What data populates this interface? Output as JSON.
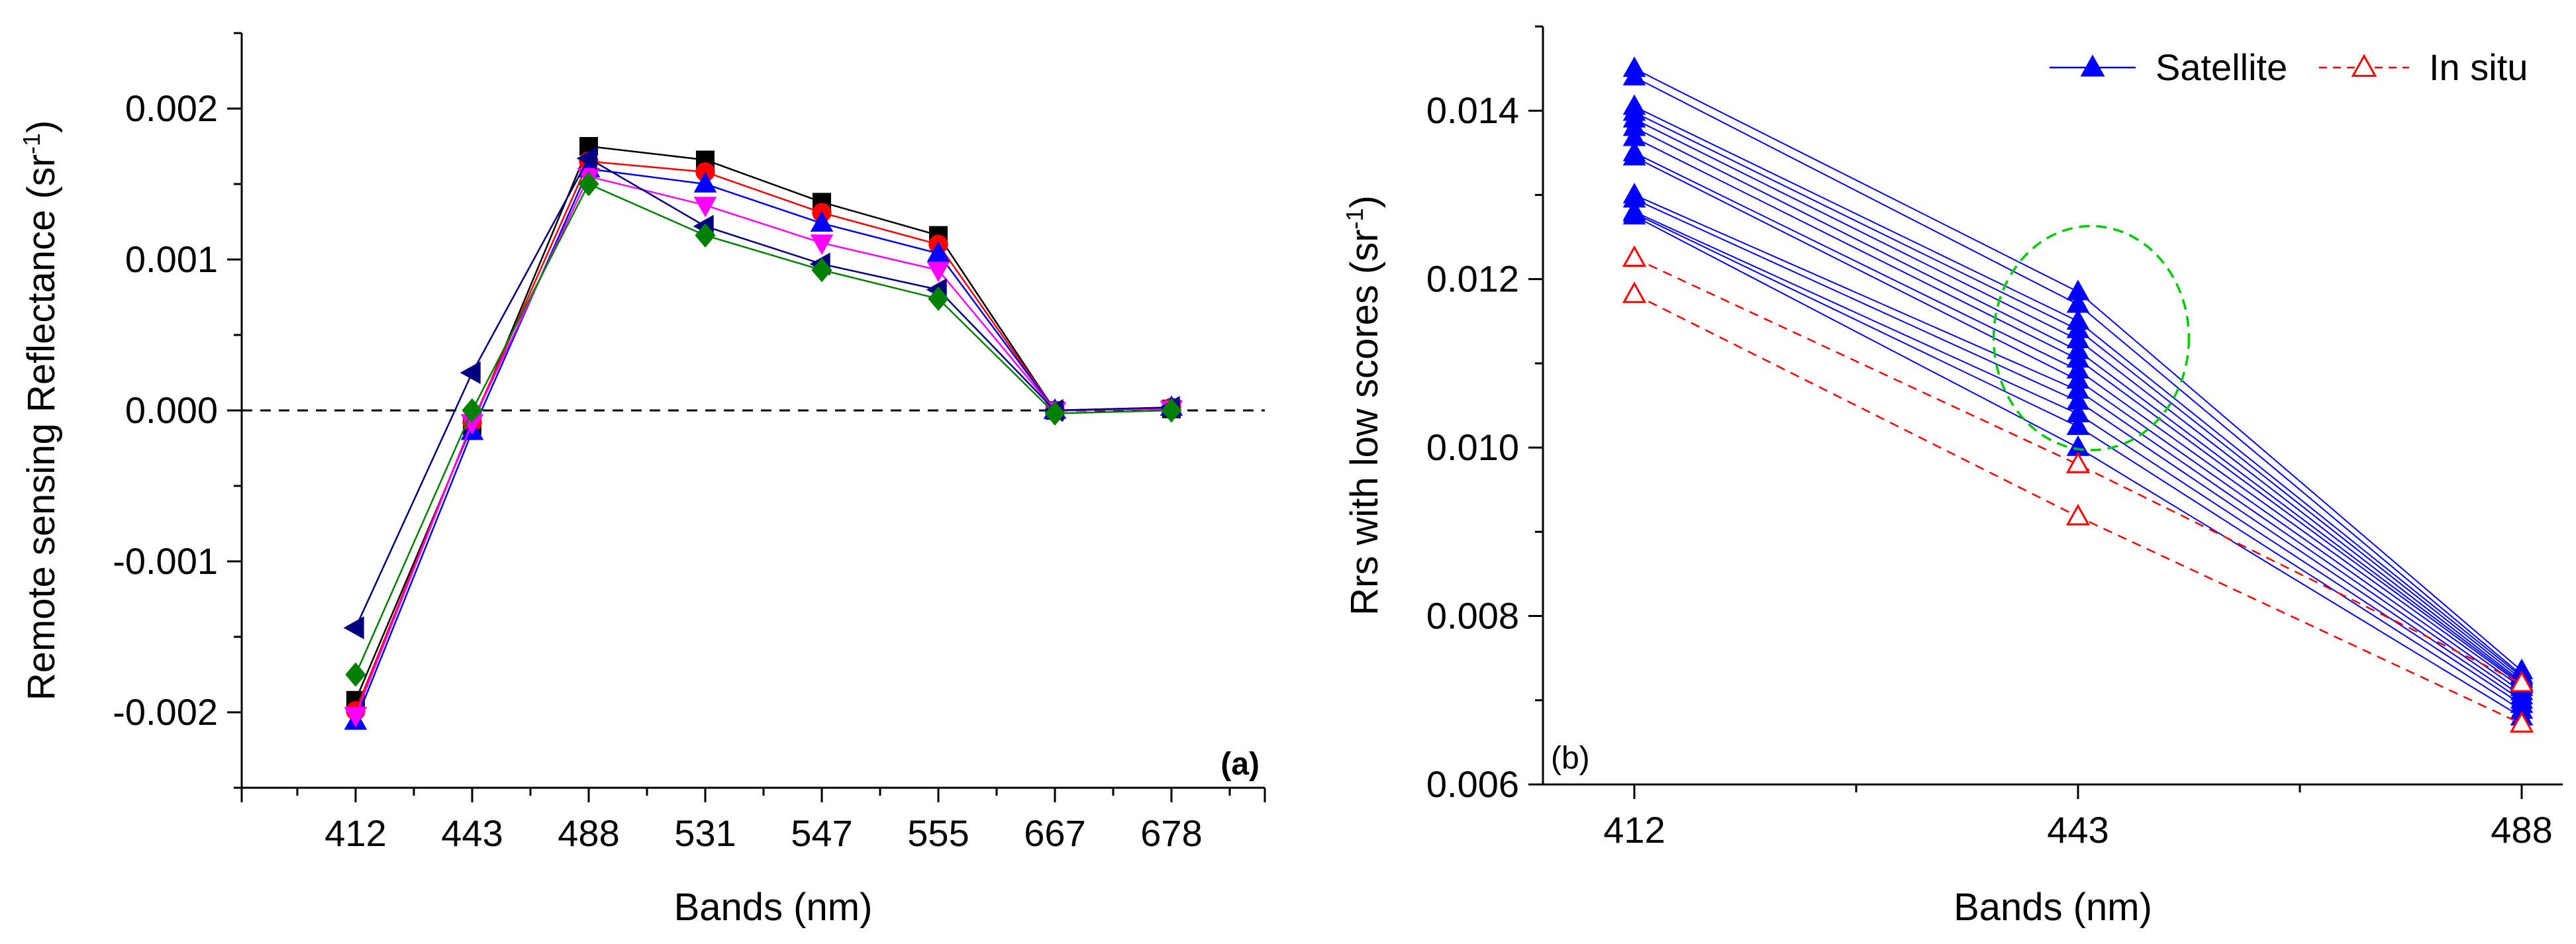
{
  "chart_data": [
    {
      "type": "line",
      "panel_label": "(a)",
      "xlabel": "Bands (nm)",
      "ylabel": "Remote sensing Reflectance (sr",
      "ylabel_sup": "-1",
      "ylabel_close": ")",
      "categories": [
        "412",
        "443",
        "488",
        "531",
        "547",
        "555",
        "667",
        "678"
      ],
      "ylim": [
        -0.0025,
        0.0025
      ],
      "yticks": [
        -0.002,
        -0.001,
        0.0,
        0.001,
        0.002
      ],
      "ytick_labels": [
        "-0.002",
        "-0.001",
        "0.000",
        "0.001",
        "0.002"
      ],
      "zero_line": "dashed",
      "series": [
        {
          "marker": "square",
          "color": "#000000",
          "line_color": "#000000",
          "values": [
            -0.00192,
            -0.0001,
            0.00175,
            0.00166,
            0.00138,
            0.00116,
            0.0,
            1e-05
          ]
        },
        {
          "marker": "circle",
          "color": "#ff0000",
          "line_color": "#ff0000",
          "values": [
            -0.00199,
            -8e-05,
            0.00165,
            0.00158,
            0.00131,
            0.0011,
            0.0,
            2e-05
          ]
        },
        {
          "marker": "triangle-up",
          "color": "#0000ff",
          "line_color": "#0000ff",
          "values": [
            -0.00206,
            -0.00014,
            0.0016,
            0.0015,
            0.00124,
            0.00104,
            0.0,
            2e-05
          ]
        },
        {
          "marker": "triangle-down",
          "color": "#ff00ff",
          "line_color": "#ff00ff",
          "values": [
            -0.00202,
            -8e-05,
            0.00155,
            0.00136,
            0.00111,
            0.00093,
            0.0,
            1e-05
          ]
        },
        {
          "marker": "triangle-left",
          "color": "#000080",
          "line_color": "#000080",
          "values": [
            -0.00144,
            0.00025,
            0.00167,
            0.00122,
            0.00097,
            0.0008,
            0.0,
            2e-05
          ]
        },
        {
          "marker": "diamond",
          "color": "#008000",
          "line_color": "#008000",
          "values": [
            -0.00175,
            0.0,
            0.0015,
            0.00116,
            0.00093,
            0.00074,
            -2e-05,
            0.0
          ]
        }
      ]
    },
    {
      "type": "line",
      "panel_label": "(b)",
      "xlabel": "Bands (nm)",
      "ylabel": "Rrs with low scores (sr",
      "ylabel_sup": "-1",
      "ylabel_close": ")",
      "categories": [
        "412",
        "443",
        "488"
      ],
      "ylim": [
        0.006,
        0.015
      ],
      "yticks": [
        0.006,
        0.008,
        0.01,
        0.012,
        0.014
      ],
      "ytick_labels": [
        "0.006",
        "0.008",
        "0.010",
        "0.012",
        "0.014"
      ],
      "legend": {
        "placement": "top-right",
        "entries": [
          {
            "name": "Satellite",
            "color": "#0000ff",
            "marker": "triangle-up-filled",
            "dash": "solid"
          },
          {
            "name": "In situ",
            "color": "#ff0000",
            "marker": "triangle-up-open",
            "dash": "dashed"
          }
        ]
      },
      "annotation": {
        "shape": "dashed-ellipse",
        "color": "#00cc00",
        "center_x_category": "443",
        "center_y": 0.0113,
        "rx_bands": 0.22,
        "ry": 0.00133
      },
      "series": [
        {
          "name": "Satellite",
          "values": [
            0.0145,
            0.01185,
            0.00735
          ]
        },
        {
          "name": "Satellite",
          "values": [
            0.0144,
            0.0117,
            0.0073
          ]
        },
        {
          "name": "Satellite",
          "values": [
            0.01405,
            0.0115,
            0.00728
          ]
        },
        {
          "name": "Satellite",
          "values": [
            0.01398,
            0.0114,
            0.00725
          ]
        },
        {
          "name": "Satellite",
          "values": [
            0.0139,
            0.01128,
            0.00722
          ]
        },
        {
          "name": "Satellite",
          "values": [
            0.0138,
            0.01115,
            0.0072
          ]
        },
        {
          "name": "Satellite",
          "values": [
            0.01368,
            0.01105,
            0.00718
          ]
        },
        {
          "name": "Satellite",
          "values": [
            0.0135,
            0.01092,
            0.00715
          ]
        },
        {
          "name": "Satellite",
          "values": [
            0.01345,
            0.0108,
            0.0071
          ]
        },
        {
          "name": "Satellite",
          "values": [
            0.013,
            0.01068,
            0.00705
          ]
        },
        {
          "name": "Satellite",
          "values": [
            0.01295,
            0.01055,
            0.007
          ]
        },
        {
          "name": "Satellite",
          "values": [
            0.0128,
            0.0104,
            0.00695
          ]
        },
        {
          "name": "Satellite",
          "values": [
            0.01278,
            0.01025,
            0.00688
          ]
        },
        {
          "name": "Satellite",
          "values": [
            0.01275,
            0.01,
            0.0068
          ]
        },
        {
          "name": "In situ",
          "values": [
            0.01225,
            0.0098,
            0.0072
          ]
        },
        {
          "name": "In situ",
          "values": [
            0.01182,
            0.00918,
            0.00672
          ]
        }
      ]
    }
  ]
}
